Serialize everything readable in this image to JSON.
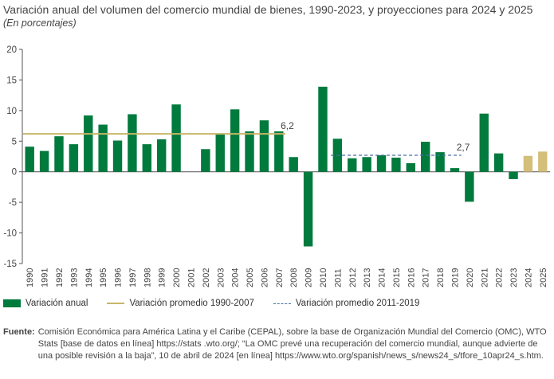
{
  "title": "Variación anual del volumen del comercio mundial de bienes, 1990-2023, y proyecciones para 2024 y 2025",
  "subtitle": "(En porcentajes)",
  "colors": {
    "bar": "#007a3d",
    "projection": "#d4bf7a",
    "avg1": "#c8b66a",
    "avg2": "#4a6fa5",
    "axis": "#555555",
    "grid": "#dddddd"
  },
  "chart_data": {
    "type": "bar",
    "categories": [
      "1990",
      "1991",
      "1992",
      "1993",
      "1994",
      "1995",
      "1996",
      "1997",
      "1998",
      "1999",
      "2000",
      "2001",
      "2002",
      "2003",
      "2004",
      "2005",
      "2006",
      "2007",
      "2008",
      "2009",
      "2010",
      "2011",
      "2012",
      "2013",
      "2014",
      "2015",
      "2016",
      "2017",
      "2018",
      "2019",
      "2020",
      "2021",
      "2022",
      "2023",
      "2024",
      "2025"
    ],
    "series": [
      {
        "name": "Variación anual",
        "values": [
          4.1,
          3.4,
          5.8,
          4.5,
          9.2,
          7.7,
          5.1,
          9.4,
          4.5,
          5.3,
          11.0,
          null,
          3.7,
          6.2,
          10.2,
          6.6,
          8.4,
          6.6,
          2.4,
          -12.2,
          13.9,
          5.4,
          2.2,
          2.4,
          2.7,
          2.3,
          1.4,
          4.9,
          3.2,
          0.6,
          -4.9,
          9.5,
          3.0,
          -1.2,
          2.6,
          3.3
        ]
      }
    ],
    "projection_categories": [
      "2024",
      "2025"
    ],
    "reference_lines": [
      {
        "name": "Variación promedio 1990-2007",
        "value": 6.2,
        "from": "1990",
        "to": "2007",
        "label": "6,2",
        "style": "solid"
      },
      {
        "name": "Variación promedio 2011-2019",
        "value": 2.7,
        "from": "2011",
        "to": "2019",
        "label": "2,7",
        "style": "dashed"
      }
    ],
    "y_ticks": [
      "20",
      "15",
      "10",
      "5",
      "0",
      "-5",
      "-10",
      "-15"
    ],
    "ylim": [
      -15,
      20
    ],
    "grid": false,
    "legend_position": "bottom"
  },
  "legend": {
    "bar": "Variación anual",
    "avg1": "Variación promedio 1990-2007",
    "avg2": "Variación promedio 2011-2019"
  },
  "source": {
    "label": "Fuente:",
    "text": "Comisión Económica para América Latina y el Caribe (CEPAL), sobre la base de Organización Mundial del Comercio (OMC), WTO Stats [base de datos en línea] https://stats .wto.org/; “La OMC prevé una recuperación del comercio mundial, aunque advierte de una posible revisión a la baja”, 10 de abril de 2024 [en línea] https://www.wto.org/spanish/news_s/news24_s/tfore_10apr24_s.htm."
  }
}
